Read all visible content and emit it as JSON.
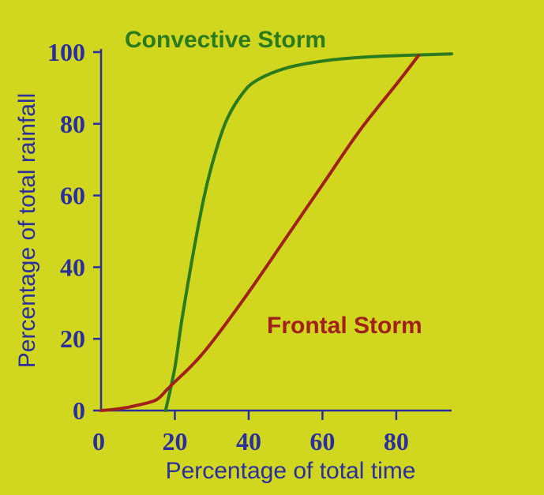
{
  "chart_data": {
    "type": "line",
    "xlabel": "Percentage of total time",
    "ylabel": "Percentage of total rainfall",
    "xlim": [
      0,
      95
    ],
    "ylim": [
      0,
      100
    ],
    "x_ticks": [
      {
        "value": 0,
        "label": "0"
      },
      {
        "value": 20,
        "label": "20"
      },
      {
        "value": 40,
        "label": "40"
      },
      {
        "value": 60,
        "label": "60"
      },
      {
        "value": 80,
        "label": "80"
      }
    ],
    "y_ticks": [
      {
        "value": 0,
        "label": "0"
      },
      {
        "value": 20,
        "label": "20"
      },
      {
        "value": 40,
        "label": "40"
      },
      {
        "value": 60,
        "label": "60"
      },
      {
        "value": 80,
        "label": "80"
      },
      {
        "value": 100,
        "label": "100"
      }
    ],
    "grid": false,
    "legend": "none",
    "series": [
      {
        "name": "Convective Storm",
        "color": "#2a7a1e",
        "points": [
          [
            17.5,
            0
          ],
          [
            20,
            12
          ],
          [
            22,
            26
          ],
          [
            25,
            44
          ],
          [
            28,
            60
          ],
          [
            31,
            72
          ],
          [
            34,
            81
          ],
          [
            38,
            88
          ],
          [
            42,
            92
          ],
          [
            50,
            95.5
          ],
          [
            60,
            97.5
          ],
          [
            70,
            98.5
          ],
          [
            80,
            99
          ],
          [
            95,
            99.5
          ]
        ]
      },
      {
        "name": "Frontal Storm",
        "color": "#a0201a",
        "points": [
          [
            0,
            0
          ],
          [
            5,
            0.5
          ],
          [
            10,
            1.5
          ],
          [
            15,
            3
          ],
          [
            18,
            6
          ],
          [
            20,
            8
          ],
          [
            25,
            13
          ],
          [
            30,
            19
          ],
          [
            40,
            33
          ],
          [
            50,
            48
          ],
          [
            60,
            63
          ],
          [
            70,
            78
          ],
          [
            80,
            91
          ],
          [
            86,
            99
          ]
        ]
      }
    ],
    "axis_color": "#2b2f9c"
  }
}
